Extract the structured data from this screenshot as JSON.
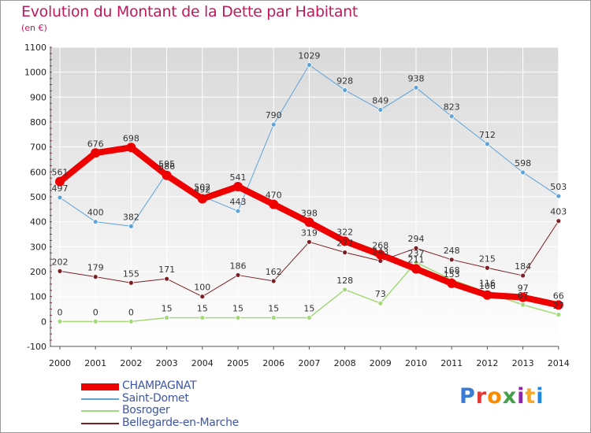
{
  "header": {
    "title": "Evolution du Montant de la Dette par Habitant",
    "subtitle": "(en €)"
  },
  "logo": {
    "text": "Proxiti",
    "colors": [
      "#3a7bd5",
      "#e53935",
      "#fb8c00",
      "#43a047",
      "#8e24aa",
      "#f9a825",
      "#1e88e5"
    ]
  },
  "chart_data": {
    "type": "line",
    "title": "Evolution du Montant de la Dette par Habitant",
    "ylabel": "(en €)",
    "xlabel": "",
    "x": [
      "2000",
      "2001",
      "2002",
      "2003",
      "2004",
      "2005",
      "2006",
      "2007",
      "2008",
      "2009",
      "2010",
      "2011",
      "2012",
      "2013",
      "2014"
    ],
    "ylim": [
      -100,
      1100
    ],
    "yticks": [
      -100,
      0,
      100,
      200,
      300,
      400,
      500,
      600,
      700,
      800,
      900,
      1000,
      1100
    ],
    "grid": true,
    "legend_position": "bottom-left",
    "series": [
      {
        "name": "Bellegarde-en-Marche",
        "color": "#7b1f24",
        "width": 1,
        "marker": 3,
        "values": [
          202,
          179,
          155,
          171,
          100,
          186,
          162,
          319,
          277,
          243,
          294,
          248,
          215,
          184,
          403
        ],
        "labels": [
          "202",
          "179",
          "155",
          "171",
          "100",
          "186",
          "162",
          "319",
          "277",
          "243",
          "294",
          "248",
          "215",
          "184",
          "403"
        ]
      },
      {
        "name": "Bosroger",
        "color": "#a3d977",
        "width": 1.5,
        "marker": 3,
        "values": [
          0,
          0,
          0,
          15,
          15,
          15,
          15,
          15,
          128,
          73,
          237,
          168,
          116,
          67,
          27
        ],
        "labels": [
          "0",
          "0",
          "0",
          "15",
          "15",
          "15",
          "15",
          "15",
          "128",
          "73",
          "237",
          "168",
          "116",
          "67",
          "27"
        ]
      },
      {
        "name": "Saint-Domet",
        "color": "#5ea3d9",
        "width": 1,
        "marker": 3,
        "values": [
          497,
          400,
          382,
          595,
          502,
          443,
          790,
          1029,
          928,
          849,
          938,
          823,
          712,
          598,
          503
        ],
        "labels": [
          "497",
          "400",
          "382",
          "595",
          "502",
          "443",
          "790",
          "1029",
          "928",
          "849",
          "938",
          "823",
          "712",
          "598",
          "503"
        ]
      },
      {
        "name": "CHAMPAGNAT",
        "color": "#ee0000",
        "width": 8,
        "marker": 6,
        "values": [
          561,
          676,
          698,
          586,
          492,
          541,
          470,
          398,
          322,
          268,
          211,
          153,
          106,
          97,
          66
        ],
        "labels": [
          "561",
          "676",
          "698",
          "586",
          "492",
          "541",
          "470",
          "398",
          "322",
          "268",
          "211",
          "153",
          "106",
          "97",
          "66"
        ]
      }
    ]
  }
}
